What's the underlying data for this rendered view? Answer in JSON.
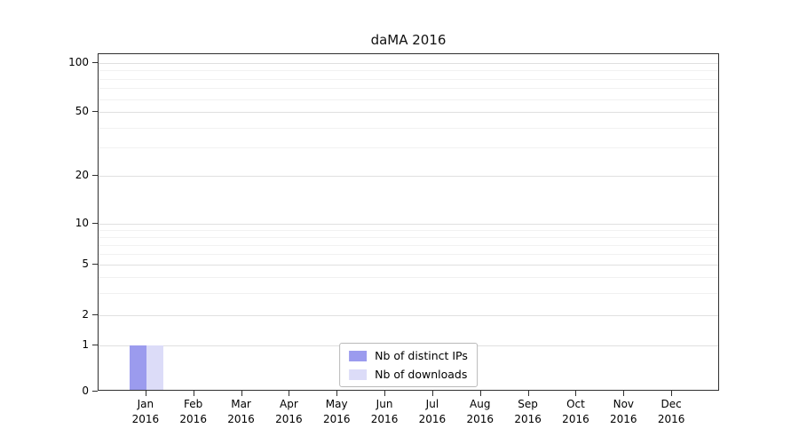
{
  "chart_data": {
    "type": "bar",
    "title": "daMA 2016",
    "categories": [
      "Jan",
      "Feb",
      "Mar",
      "Apr",
      "May",
      "Jun",
      "Jul",
      "Aug",
      "Sep",
      "Oct",
      "Nov",
      "Dec"
    ],
    "x_tick_second_line": "2016",
    "series": [
      {
        "name": "Nb of distinct IPs",
        "color": "#9b9bee",
        "values": [
          1,
          0,
          0,
          0,
          0,
          0,
          0,
          0,
          0,
          0,
          0,
          0
        ]
      },
      {
        "name": "Nb of downloads",
        "color": "#dcdcf8",
        "values": [
          1,
          0,
          0,
          0,
          0,
          0,
          0,
          0,
          0,
          0,
          0,
          0
        ]
      }
    ],
    "yscale": "symlog",
    "yticks": [
      0,
      1,
      2,
      5,
      10,
      20,
      50,
      100
    ],
    "ylim": [
      0,
      100
    ],
    "xlabel": "",
    "ylabel": "",
    "grid": "horizontal",
    "legend_position": "lower center"
  }
}
